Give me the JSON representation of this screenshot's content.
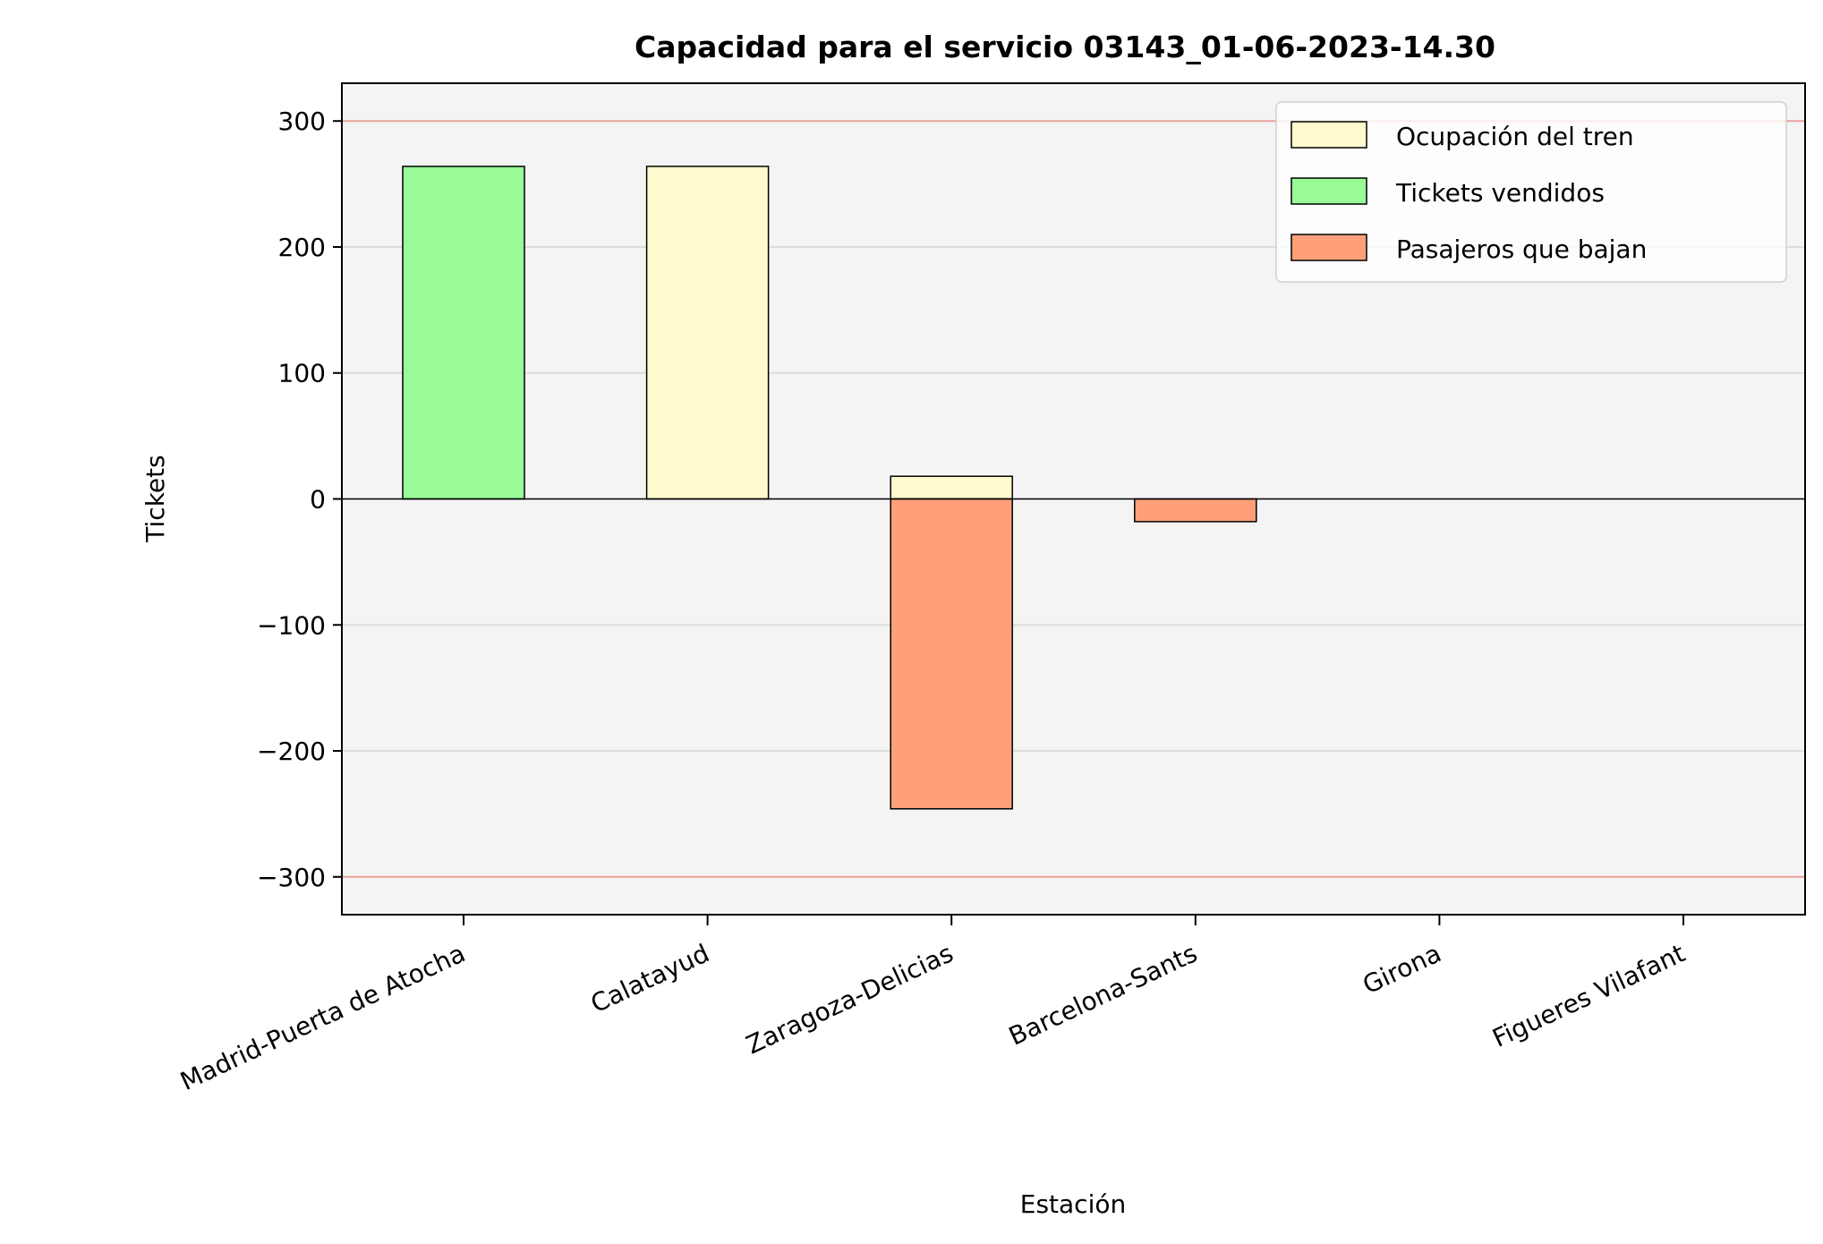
{
  "chart_data": {
    "type": "bar",
    "title": "Capacidad para el servicio 03143_01-06-2023-14.30",
    "xlabel": "Estación",
    "ylabel": "Tickets",
    "ylim": [
      -330,
      330
    ],
    "yticks": [
      -300,
      -200,
      -100,
      0,
      100,
      200,
      300
    ],
    "ytick_labels": [
      "−300",
      "−200",
      "−100",
      "0",
      "100",
      "200",
      "300"
    ],
    "capacity_lines": [
      300,
      -300
    ],
    "categories": [
      "Madrid-Puerta de Atocha",
      "Calatayud",
      "Zaragoza-Delicias",
      "Barcelona-Sants",
      "Girona",
      "Figueres Vilafant"
    ],
    "series": [
      {
        "name": "Ocupación del tren",
        "color": "#fffacd",
        "values": [
          0,
          264,
          18,
          0,
          0,
          0
        ]
      },
      {
        "name": "Tickets vendidos",
        "color": "#98fb98",
        "values": [
          264,
          0,
          0,
          0,
          0,
          0
        ]
      },
      {
        "name": "Pasajeros que bajan",
        "color": "#ffa07a",
        "values": [
          0,
          0,
          -246,
          -18,
          0,
          0
        ]
      }
    ],
    "grid": true,
    "legend_position": "top-right",
    "colors": {
      "background": "#f4f4f4",
      "capacity_line": "#e8a29a",
      "grid": "#dcdcdc"
    }
  }
}
